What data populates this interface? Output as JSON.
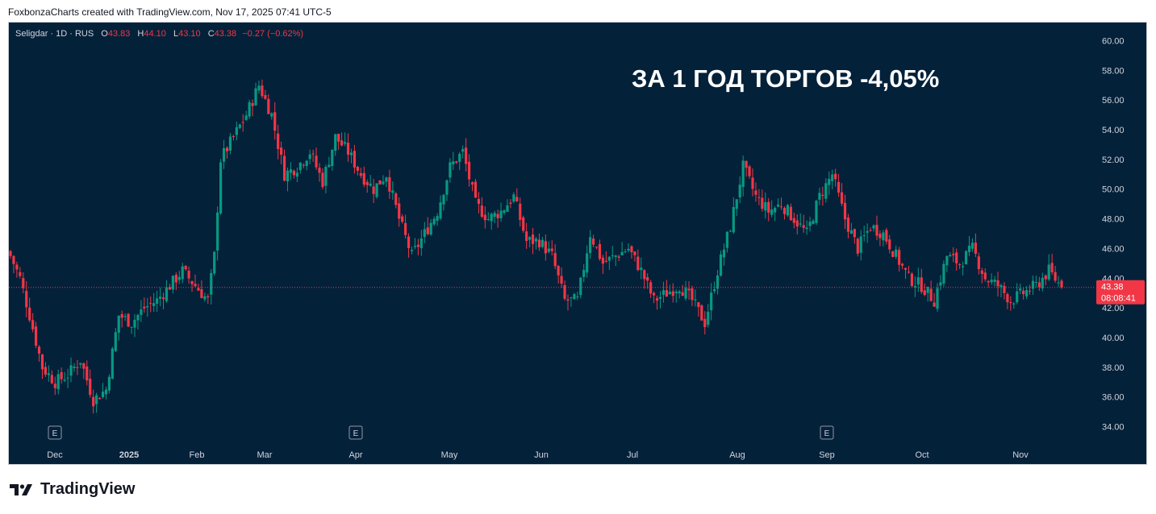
{
  "header": {
    "caption": "FoxbonzaCharts created with TradingView.com, Nov 17, 2025 07:41 UTC-5"
  },
  "legend": {
    "symbol": "Seligdar · 1D · RUS",
    "o_key": "O",
    "o_val": "43.83",
    "h_key": "H",
    "h_val": "44.10",
    "l_key": "L",
    "l_val": "43.10",
    "c_key": "C",
    "c_val": "43.38",
    "change": "−0.27 (−0.62%)"
  },
  "headline": "ЗА 1 ГОД ТОРГОВ -4,05%",
  "price_tag": {
    "price": "43.38",
    "countdown": "08:08:41"
  },
  "earnings_marker": "E",
  "brand": {
    "name": "TradingView",
    "logo_icon": "tradingview-logo-icon"
  },
  "colors": {
    "background": "#04213a",
    "up": "#089981",
    "down": "#f23645",
    "axis_text": "#d1d4dc"
  },
  "chart_data": {
    "type": "candlestick",
    "ylim": [
      33,
      61
    ],
    "y_ticks": [
      "34.00",
      "36.00",
      "38.00",
      "40.00",
      "42.00",
      "44.00",
      "46.00",
      "48.00",
      "50.00",
      "52.00",
      "54.00",
      "56.00",
      "58.00",
      "60.00"
    ],
    "x_tick_labels": [
      "Dec",
      "2025",
      "Feb",
      "Mar",
      "Apr",
      "May",
      "Jun",
      "Jul",
      "Aug",
      "Sep",
      "Oct",
      "Nov"
    ],
    "earnings_months": [
      "Dec",
      "Apr",
      "Sep"
    ],
    "last_price": 43.38,
    "close_path": [
      [
        0,
        45.5
      ],
      [
        3,
        44.0
      ],
      [
        6,
        41.5
      ],
      [
        10,
        38.0
      ],
      [
        14,
        37.0
      ],
      [
        18,
        37.5
      ],
      [
        22,
        38.5
      ],
      [
        26,
        35.8
      ],
      [
        30,
        36.5
      ],
      [
        34,
        41.5
      ],
      [
        38,
        41.0
      ],
      [
        42,
        42.0
      ],
      [
        46,
        42.5
      ],
      [
        50,
        43.5
      ],
      [
        54,
        44.5
      ],
      [
        58,
        43.5
      ],
      [
        62,
        42.5
      ],
      [
        64,
        45.5
      ],
      [
        66,
        52.0
      ],
      [
        70,
        53.5
      ],
      [
        74,
        55.0
      ],
      [
        78,
        57.0
      ],
      [
        82,
        55.0
      ],
      [
        86,
        51.0
      ],
      [
        90,
        51.5
      ],
      [
        94,
        52.5
      ],
      [
        98,
        50.5
      ],
      [
        102,
        53.5
      ],
      [
        106,
        52.5
      ],
      [
        110,
        51.0
      ],
      [
        114,
        50.0
      ],
      [
        118,
        51.0
      ],
      [
        122,
        48.0
      ],
      [
        126,
        45.5
      ],
      [
        130,
        47.0
      ],
      [
        134,
        48.5
      ],
      [
        138,
        51.5
      ],
      [
        142,
        52.5
      ],
      [
        146,
        49.0
      ],
      [
        150,
        48.0
      ],
      [
        154,
        48.5
      ],
      [
        158,
        49.5
      ],
      [
        162,
        46.5
      ],
      [
        166,
        46.5
      ],
      [
        170,
        45.5
      ],
      [
        174,
        42.5
      ],
      [
        178,
        42.5
      ],
      [
        182,
        47.0
      ],
      [
        186,
        45.0
      ],
      [
        190,
        45.5
      ],
      [
        194,
        46.0
      ],
      [
        198,
        44.5
      ],
      [
        202,
        42.5
      ],
      [
        206,
        43.0
      ],
      [
        210,
        43.5
      ],
      [
        214,
        42.5
      ],
      [
        218,
        41.0
      ],
      [
        222,
        44.5
      ],
      [
        226,
        47.5
      ],
      [
        230,
        51.5
      ],
      [
        234,
        49.5
      ],
      [
        238,
        48.5
      ],
      [
        242,
        49.0
      ],
      [
        246,
        48.0
      ],
      [
        250,
        47.0
      ],
      [
        254,
        49.5
      ],
      [
        258,
        51.0
      ],
      [
        262,
        48.0
      ],
      [
        266,
        46.0
      ],
      [
        270,
        47.5
      ],
      [
        274,
        47.0
      ],
      [
        278,
        45.5
      ],
      [
        282,
        44.0
      ],
      [
        286,
        43.5
      ],
      [
        290,
        42.5
      ],
      [
        294,
        45.5
      ],
      [
        298,
        45.0
      ],
      [
        302,
        46.0
      ],
      [
        306,
        44.0
      ],
      [
        310,
        43.5
      ],
      [
        314,
        42.5
      ],
      [
        318,
        43.0
      ],
      [
        322,
        43.5
      ],
      [
        326,
        44.5
      ],
      [
        330,
        43.38
      ]
    ]
  }
}
